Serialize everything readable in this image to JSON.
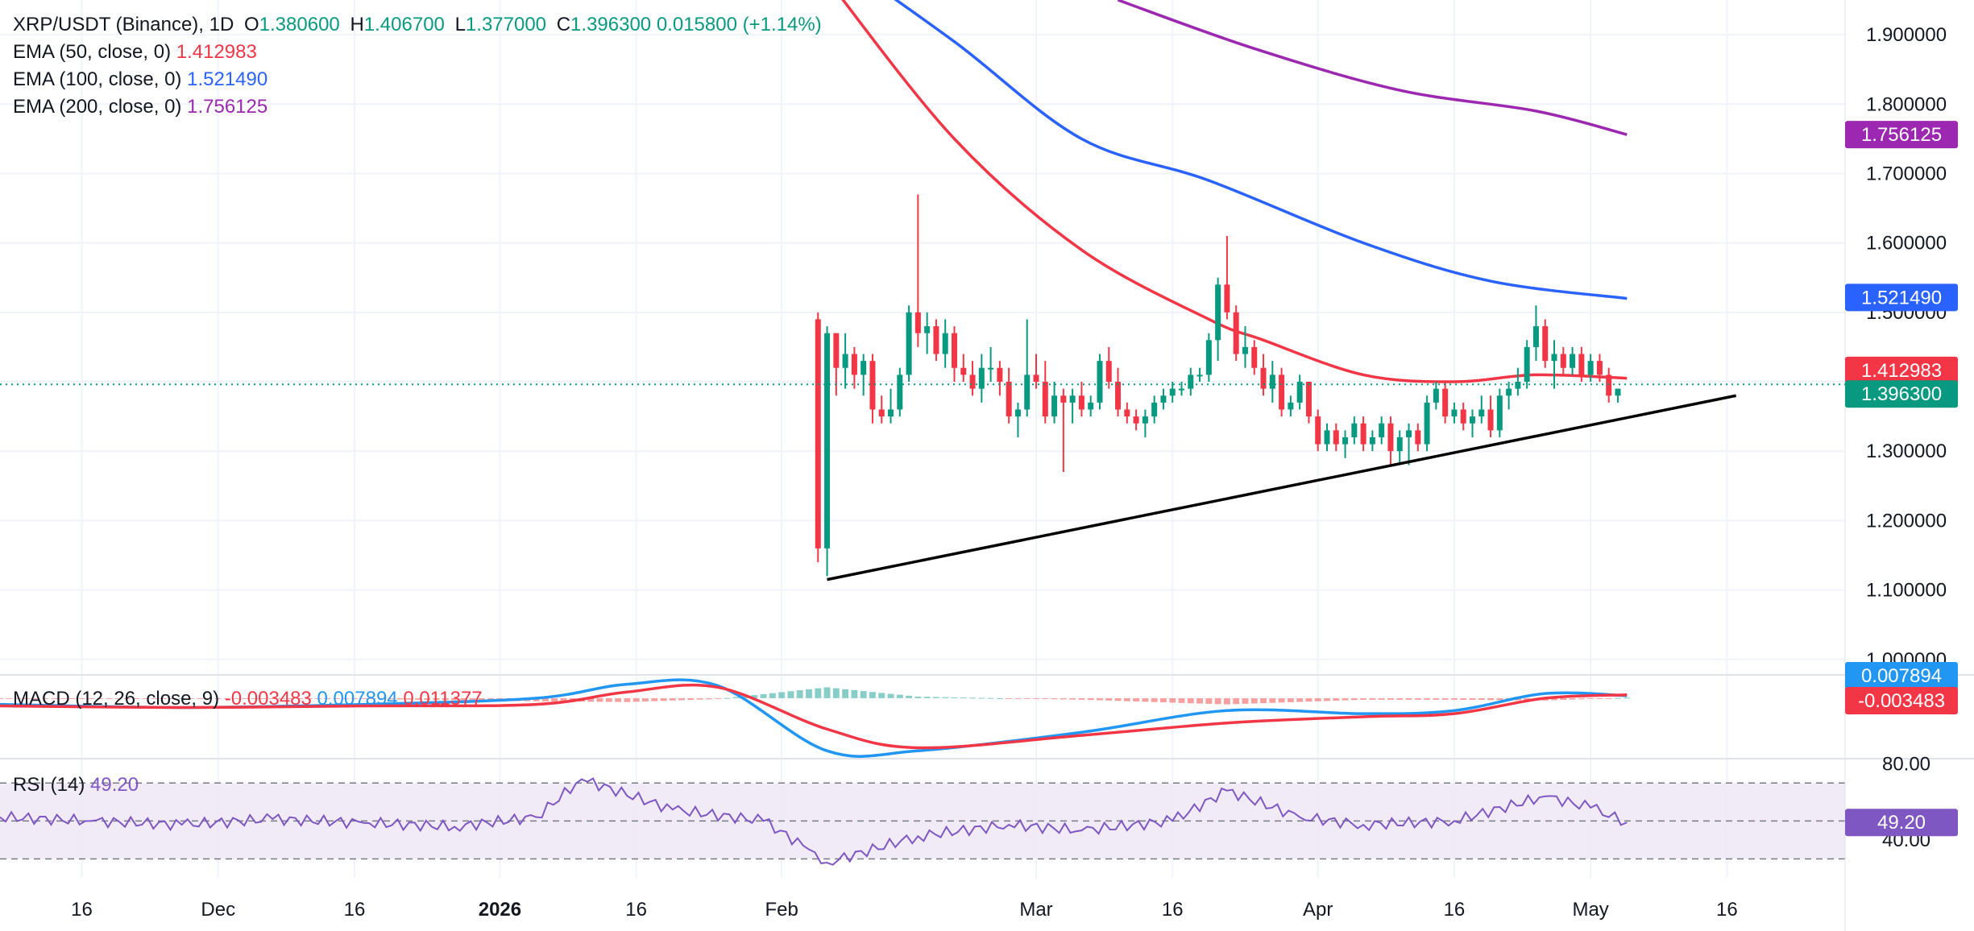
{
  "header": {
    "symbol": "XRP/USDT (Binance), 1D",
    "o_label": "O",
    "o_value": "1.380600",
    "h_label": "H",
    "h_value": "1.406700",
    "l_label": "L",
    "l_value": "1.377000",
    "c_label": "C",
    "c_value": "1.396300",
    "change": "0.015800 (+1.14%)"
  },
  "indicators": {
    "ema50": {
      "label": "EMA (50, close, 0)",
      "value": "1.412983",
      "color": "#f23645"
    },
    "ema100": {
      "label": "EMA (100, close, 0)",
      "value": "1.521490",
      "color": "#2962ff"
    },
    "ema200": {
      "label": "EMA (200, close, 0)",
      "value": "1.756125",
      "color": "#9c27b0"
    },
    "macd": {
      "label": "MACD (12, 26, close, 9)",
      "hist": "-0.003483",
      "macd": "0.007894",
      "signal": "0.011377"
    },
    "rsi": {
      "label": "RSI (14)",
      "value": "49.20"
    }
  },
  "price_badges": {
    "ema200": "1.756125",
    "ema100": "1.521490",
    "ema50": "1.412983",
    "last": "1.396300",
    "macd": "0.007894",
    "hist": "-0.003483",
    "rsi": "49.20"
  },
  "colors": {
    "up": "#089981",
    "down": "#f23645",
    "ema50": "#f23645",
    "ema100": "#2962ff",
    "ema200": "#9c27b0",
    "macd": "#2196f3",
    "signal": "#f23645",
    "rsi": "#7e57c2",
    "rsi_band": "#ede7f6",
    "trendline": "#000000"
  },
  "chart_data": {
    "type": "line",
    "title": "XRP/USDT (Binance), 1D",
    "price_axis": {
      "ticks": [
        "1.900000",
        "1.800000",
        "1.700000",
        "1.600000",
        "1.500000",
        "1.300000",
        "1.200000",
        "1.100000",
        "1.000000"
      ],
      "range": [
        0.98,
        1.95
      ]
    },
    "rsi_axis": {
      "ticks": [
        "80.00",
        "40.00"
      ],
      "range": [
        20,
        82
      ],
      "band": [
        30,
        70
      ]
    },
    "time_axis": {
      "ticks": [
        "16",
        "Dec",
        "16",
        "2026",
        "16",
        "Feb",
        "Mar",
        "16",
        "Apr",
        "16",
        "May",
        "16"
      ],
      "tick_dates": [
        "2025-11-16",
        "2025-12-01",
        "2025-12-16",
        "2026-01-01",
        "2026-01-16",
        "2026-02-01",
        "2026-03-01",
        "2026-03-16",
        "2026-04-01",
        "2026-04-16",
        "2026-05-01",
        "2026-05-16"
      ],
      "range": [
        "2025-11-07",
        "2026-05-29"
      ]
    },
    "visible_candles": [
      {
        "date": "2026-02-05",
        "o": 1.49,
        "h": 1.5,
        "l": 1.14,
        "c": 1.16
      },
      {
        "date": "2026-02-06",
        "o": 1.16,
        "h": 1.48,
        "l": 1.12,
        "c": 1.47
      },
      {
        "date": "2026-02-07",
        "o": 1.47,
        "h": 1.47,
        "l": 1.38,
        "c": 1.42
      },
      {
        "date": "2026-02-08",
        "o": 1.42,
        "h": 1.47,
        "l": 1.39,
        "c": 1.44
      },
      {
        "date": "2026-02-09",
        "o": 1.44,
        "h": 1.45,
        "l": 1.39,
        "c": 1.41
      },
      {
        "date": "2026-02-10",
        "o": 1.41,
        "h": 1.44,
        "l": 1.38,
        "c": 1.43
      },
      {
        "date": "2026-02-11",
        "o": 1.43,
        "h": 1.44,
        "l": 1.34,
        "c": 1.36
      },
      {
        "date": "2026-02-12",
        "o": 1.36,
        "h": 1.38,
        "l": 1.34,
        "c": 1.35
      },
      {
        "date": "2026-02-13",
        "o": 1.35,
        "h": 1.39,
        "l": 1.34,
        "c": 1.36
      },
      {
        "date": "2026-02-14",
        "o": 1.36,
        "h": 1.42,
        "l": 1.35,
        "c": 1.41
      },
      {
        "date": "2026-02-15",
        "o": 1.41,
        "h": 1.51,
        "l": 1.4,
        "c": 1.5
      },
      {
        "date": "2026-02-16",
        "o": 1.5,
        "h": 1.67,
        "l": 1.45,
        "c": 1.47
      },
      {
        "date": "2026-02-17",
        "o": 1.47,
        "h": 1.5,
        "l": 1.44,
        "c": 1.48
      },
      {
        "date": "2026-02-18",
        "o": 1.48,
        "h": 1.49,
        "l": 1.43,
        "c": 1.44
      },
      {
        "date": "2026-02-19",
        "o": 1.44,
        "h": 1.49,
        "l": 1.42,
        "c": 1.47
      },
      {
        "date": "2026-02-20",
        "o": 1.47,
        "h": 1.48,
        "l": 1.4,
        "c": 1.42
      },
      {
        "date": "2026-02-21",
        "o": 1.42,
        "h": 1.44,
        "l": 1.4,
        "c": 1.41
      },
      {
        "date": "2026-02-22",
        "o": 1.41,
        "h": 1.43,
        "l": 1.38,
        "c": 1.39
      },
      {
        "date": "2026-02-23",
        "o": 1.39,
        "h": 1.44,
        "l": 1.37,
        "c": 1.42
      },
      {
        "date": "2026-02-24",
        "o": 1.42,
        "h": 1.45,
        "l": 1.4,
        "c": 1.42
      },
      {
        "date": "2026-02-25",
        "o": 1.42,
        "h": 1.43,
        "l": 1.38,
        "c": 1.4
      },
      {
        "date": "2026-02-26",
        "o": 1.4,
        "h": 1.42,
        "l": 1.34,
        "c": 1.35
      },
      {
        "date": "2026-02-27",
        "o": 1.35,
        "h": 1.37,
        "l": 1.32,
        "c": 1.36
      },
      {
        "date": "2026-02-28",
        "o": 1.36,
        "h": 1.49,
        "l": 1.35,
        "c": 1.41
      },
      {
        "date": "2026-03-01",
        "o": 1.41,
        "h": 1.44,
        "l": 1.39,
        "c": 1.4
      },
      {
        "date": "2026-03-02",
        "o": 1.4,
        "h": 1.43,
        "l": 1.34,
        "c": 1.35
      },
      {
        "date": "2026-03-03",
        "o": 1.35,
        "h": 1.4,
        "l": 1.34,
        "c": 1.38
      },
      {
        "date": "2026-03-04",
        "o": 1.38,
        "h": 1.39,
        "l": 1.27,
        "c": 1.37
      },
      {
        "date": "2026-03-05",
        "o": 1.37,
        "h": 1.39,
        "l": 1.34,
        "c": 1.38
      },
      {
        "date": "2026-03-06",
        "o": 1.38,
        "h": 1.4,
        "l": 1.35,
        "c": 1.36
      },
      {
        "date": "2026-03-07",
        "o": 1.36,
        "h": 1.38,
        "l": 1.35,
        "c": 1.37
      },
      {
        "date": "2026-03-08",
        "o": 1.37,
        "h": 1.44,
        "l": 1.36,
        "c": 1.43
      },
      {
        "date": "2026-03-09",
        "o": 1.43,
        "h": 1.45,
        "l": 1.39,
        "c": 1.4
      },
      {
        "date": "2026-03-10",
        "o": 1.4,
        "h": 1.42,
        "l": 1.35,
        "c": 1.36
      },
      {
        "date": "2026-03-11",
        "o": 1.36,
        "h": 1.37,
        "l": 1.34,
        "c": 1.35
      },
      {
        "date": "2026-03-12",
        "o": 1.35,
        "h": 1.36,
        "l": 1.33,
        "c": 1.34
      },
      {
        "date": "2026-03-13",
        "o": 1.34,
        "h": 1.36,
        "l": 1.32,
        "c": 1.35
      },
      {
        "date": "2026-03-14",
        "o": 1.35,
        "h": 1.38,
        "l": 1.34,
        "c": 1.37
      },
      {
        "date": "2026-03-15",
        "o": 1.37,
        "h": 1.39,
        "l": 1.36,
        "c": 1.38
      },
      {
        "date": "2026-03-16",
        "o": 1.38,
        "h": 1.4,
        "l": 1.37,
        "c": 1.39
      },
      {
        "date": "2026-03-17",
        "o": 1.39,
        "h": 1.4,
        "l": 1.38,
        "c": 1.39
      },
      {
        "date": "2026-03-18",
        "o": 1.39,
        "h": 1.42,
        "l": 1.38,
        "c": 1.41
      },
      {
        "date": "2026-03-19",
        "o": 1.41,
        "h": 1.42,
        "l": 1.4,
        "c": 1.41
      },
      {
        "date": "2026-03-20",
        "o": 1.41,
        "h": 1.47,
        "l": 1.4,
        "c": 1.46
      },
      {
        "date": "2026-03-21",
        "o": 1.46,
        "h": 1.55,
        "l": 1.43,
        "c": 1.54
      },
      {
        "date": "2026-03-22",
        "o": 1.54,
        "h": 1.61,
        "l": 1.49,
        "c": 1.5
      },
      {
        "date": "2026-03-23",
        "o": 1.5,
        "h": 1.51,
        "l": 1.43,
        "c": 1.44
      },
      {
        "date": "2026-03-24",
        "o": 1.44,
        "h": 1.48,
        "l": 1.42,
        "c": 1.45
      },
      {
        "date": "2026-03-25",
        "o": 1.45,
        "h": 1.46,
        "l": 1.41,
        "c": 1.42
      },
      {
        "date": "2026-03-26",
        "o": 1.42,
        "h": 1.44,
        "l": 1.38,
        "c": 1.39
      },
      {
        "date": "2026-03-27",
        "o": 1.39,
        "h": 1.43,
        "l": 1.37,
        "c": 1.41
      },
      {
        "date": "2026-03-28",
        "o": 1.41,
        "h": 1.42,
        "l": 1.35,
        "c": 1.36
      },
      {
        "date": "2026-03-29",
        "o": 1.36,
        "h": 1.38,
        "l": 1.35,
        "c": 1.37
      },
      {
        "date": "2026-03-30",
        "o": 1.37,
        "h": 1.41,
        "l": 1.36,
        "c": 1.4
      },
      {
        "date": "2026-03-31",
        "o": 1.4,
        "h": 1.4,
        "l": 1.34,
        "c": 1.35
      },
      {
        "date": "2026-04-01",
        "o": 1.35,
        "h": 1.36,
        "l": 1.3,
        "c": 1.31
      },
      {
        "date": "2026-04-02",
        "o": 1.31,
        "h": 1.34,
        "l": 1.3,
        "c": 1.33
      },
      {
        "date": "2026-04-03",
        "o": 1.33,
        "h": 1.34,
        "l": 1.3,
        "c": 1.31
      },
      {
        "date": "2026-04-04",
        "o": 1.31,
        "h": 1.33,
        "l": 1.29,
        "c": 1.32
      },
      {
        "date": "2026-04-05",
        "o": 1.32,
        "h": 1.35,
        "l": 1.31,
        "c": 1.34
      },
      {
        "date": "2026-04-06",
        "o": 1.34,
        "h": 1.35,
        "l": 1.3,
        "c": 1.31
      },
      {
        "date": "2026-04-07",
        "o": 1.31,
        "h": 1.33,
        "l": 1.3,
        "c": 1.32
      },
      {
        "date": "2026-04-08",
        "o": 1.32,
        "h": 1.35,
        "l": 1.31,
        "c": 1.34
      },
      {
        "date": "2026-04-09",
        "o": 1.34,
        "h": 1.35,
        "l": 1.28,
        "c": 1.3
      },
      {
        "date": "2026-04-10",
        "o": 1.3,
        "h": 1.33,
        "l": 1.28,
        "c": 1.32
      },
      {
        "date": "2026-04-11",
        "o": 1.32,
        "h": 1.34,
        "l": 1.28,
        "c": 1.33
      },
      {
        "date": "2026-04-12",
        "o": 1.33,
        "h": 1.34,
        "l": 1.3,
        "c": 1.31
      },
      {
        "date": "2026-04-13",
        "o": 1.31,
        "h": 1.38,
        "l": 1.3,
        "c": 1.37
      },
      {
        "date": "2026-04-14",
        "o": 1.37,
        "h": 1.4,
        "l": 1.36,
        "c": 1.39
      },
      {
        "date": "2026-04-15",
        "o": 1.39,
        "h": 1.4,
        "l": 1.34,
        "c": 1.35
      },
      {
        "date": "2026-04-16",
        "o": 1.35,
        "h": 1.37,
        "l": 1.34,
        "c": 1.36
      },
      {
        "date": "2026-04-17",
        "o": 1.36,
        "h": 1.37,
        "l": 1.33,
        "c": 1.34
      },
      {
        "date": "2026-04-18",
        "o": 1.34,
        "h": 1.36,
        "l": 1.32,
        "c": 1.35
      },
      {
        "date": "2026-04-19",
        "o": 1.35,
        "h": 1.38,
        "l": 1.34,
        "c": 1.36
      },
      {
        "date": "2026-04-20",
        "o": 1.36,
        "h": 1.38,
        "l": 1.32,
        "c": 1.33
      },
      {
        "date": "2026-04-21",
        "o": 1.33,
        "h": 1.39,
        "l": 1.32,
        "c": 1.38
      },
      {
        "date": "2026-04-22",
        "o": 1.38,
        "h": 1.4,
        "l": 1.36,
        "c": 1.39
      },
      {
        "date": "2026-04-23",
        "o": 1.39,
        "h": 1.42,
        "l": 1.38,
        "c": 1.4
      },
      {
        "date": "2026-04-24",
        "o": 1.4,
        "h": 1.46,
        "l": 1.39,
        "c": 1.45
      },
      {
        "date": "2026-04-25",
        "o": 1.45,
        "h": 1.51,
        "l": 1.43,
        "c": 1.48
      },
      {
        "date": "2026-04-26",
        "o": 1.48,
        "h": 1.49,
        "l": 1.42,
        "c": 1.43
      },
      {
        "date": "2026-04-27",
        "o": 1.43,
        "h": 1.46,
        "l": 1.39,
        "c": 1.44
      },
      {
        "date": "2026-04-28",
        "o": 1.44,
        "h": 1.45,
        "l": 1.41,
        "c": 1.42
      },
      {
        "date": "2026-04-29",
        "o": 1.42,
        "h": 1.45,
        "l": 1.41,
        "c": 1.44
      },
      {
        "date": "2026-04-30",
        "o": 1.44,
        "h": 1.45,
        "l": 1.4,
        "c": 1.41
      },
      {
        "date": "2026-05-01",
        "o": 1.41,
        "h": 1.44,
        "l": 1.4,
        "c": 1.43
      },
      {
        "date": "2026-05-02",
        "o": 1.43,
        "h": 1.44,
        "l": 1.4,
        "c": 1.41
      },
      {
        "date": "2026-05-03",
        "o": 1.41,
        "h": 1.42,
        "l": 1.37,
        "c": 1.38
      },
      {
        "date": "2026-05-04",
        "o": 1.38,
        "h": 1.39,
        "l": 1.37,
        "c": 1.39
      }
    ],
    "trendline": {
      "from": {
        "date": "2026-02-06",
        "price": 1.115
      },
      "to": {
        "date": "2026-05-17",
        "price": 1.38
      }
    },
    "ema50_path": {
      "dates": [
        "2026-02-06",
        "2026-02-20",
        "2026-03-06",
        "2026-03-20",
        "2026-03-26",
        "2026-04-06",
        "2026-04-16",
        "2026-04-25",
        "2026-05-05"
      ],
      "values": [
        1.98,
        1.75,
        1.59,
        1.49,
        1.46,
        1.41,
        1.4,
        1.41,
        1.405
      ]
    },
    "ema100_path": {
      "dates": [
        "2026-02-06",
        "2026-02-20",
        "2026-03-06",
        "2026-03-20",
        "2026-04-06",
        "2026-04-20",
        "2026-05-05"
      ],
      "values": [
        2.02,
        1.89,
        1.75,
        1.69,
        1.6,
        1.545,
        1.52
      ]
    },
    "ema200_path": {
      "dates": [
        "2026-03-10",
        "2026-03-25",
        "2026-04-10",
        "2026-04-25",
        "2026-05-05"
      ],
      "values": [
        1.95,
        1.88,
        1.82,
        1.79,
        1.756
      ]
    },
    "rsi_series": {
      "dates": [
        "2025-11-07",
        "2025-11-17",
        "2025-11-27",
        "2025-12-07",
        "2025-12-17",
        "2025-12-27",
        "2026-01-05",
        "2026-01-10",
        "2026-01-20",
        "2026-01-30",
        "2026-02-04",
        "2026-02-06",
        "2026-02-16",
        "2026-02-26",
        "2026-03-06",
        "2026-03-16",
        "2026-03-22",
        "2026-03-30",
        "2026-04-06",
        "2026-04-16",
        "2026-04-26",
        "2026-05-01",
        "2026-05-05"
      ],
      "values": [
        52,
        50,
        48,
        51,
        49,
        47,
        52,
        72,
        56,
        50,
        35,
        28,
        42,
        48,
        45,
        50,
        66,
        52,
        48,
        50,
        63,
        57,
        49.2
      ]
    },
    "macd_series": {
      "dates": [
        "2025-11-07",
        "2025-11-27",
        "2025-12-17",
        "2026-01-05",
        "2026-01-15",
        "2026-01-25",
        "2026-02-06",
        "2026-02-16",
        "2026-03-06",
        "2026-03-22",
        "2026-04-06",
        "2026-04-16",
        "2026-04-26",
        "2026-05-05"
      ],
      "macd": [
        -0.02,
        -0.03,
        -0.02,
        0.0,
        0.045,
        0.04,
        -0.17,
        -0.17,
        -0.11,
        -0.04,
        -0.05,
        -0.04,
        0.015,
        0.008
      ],
      "signal": [
        -0.025,
        -0.03,
        -0.025,
        -0.02,
        0.02,
        0.035,
        -0.1,
        -0.16,
        -0.12,
        -0.08,
        -0.06,
        -0.05,
        0.0,
        0.011
      ]
    }
  }
}
